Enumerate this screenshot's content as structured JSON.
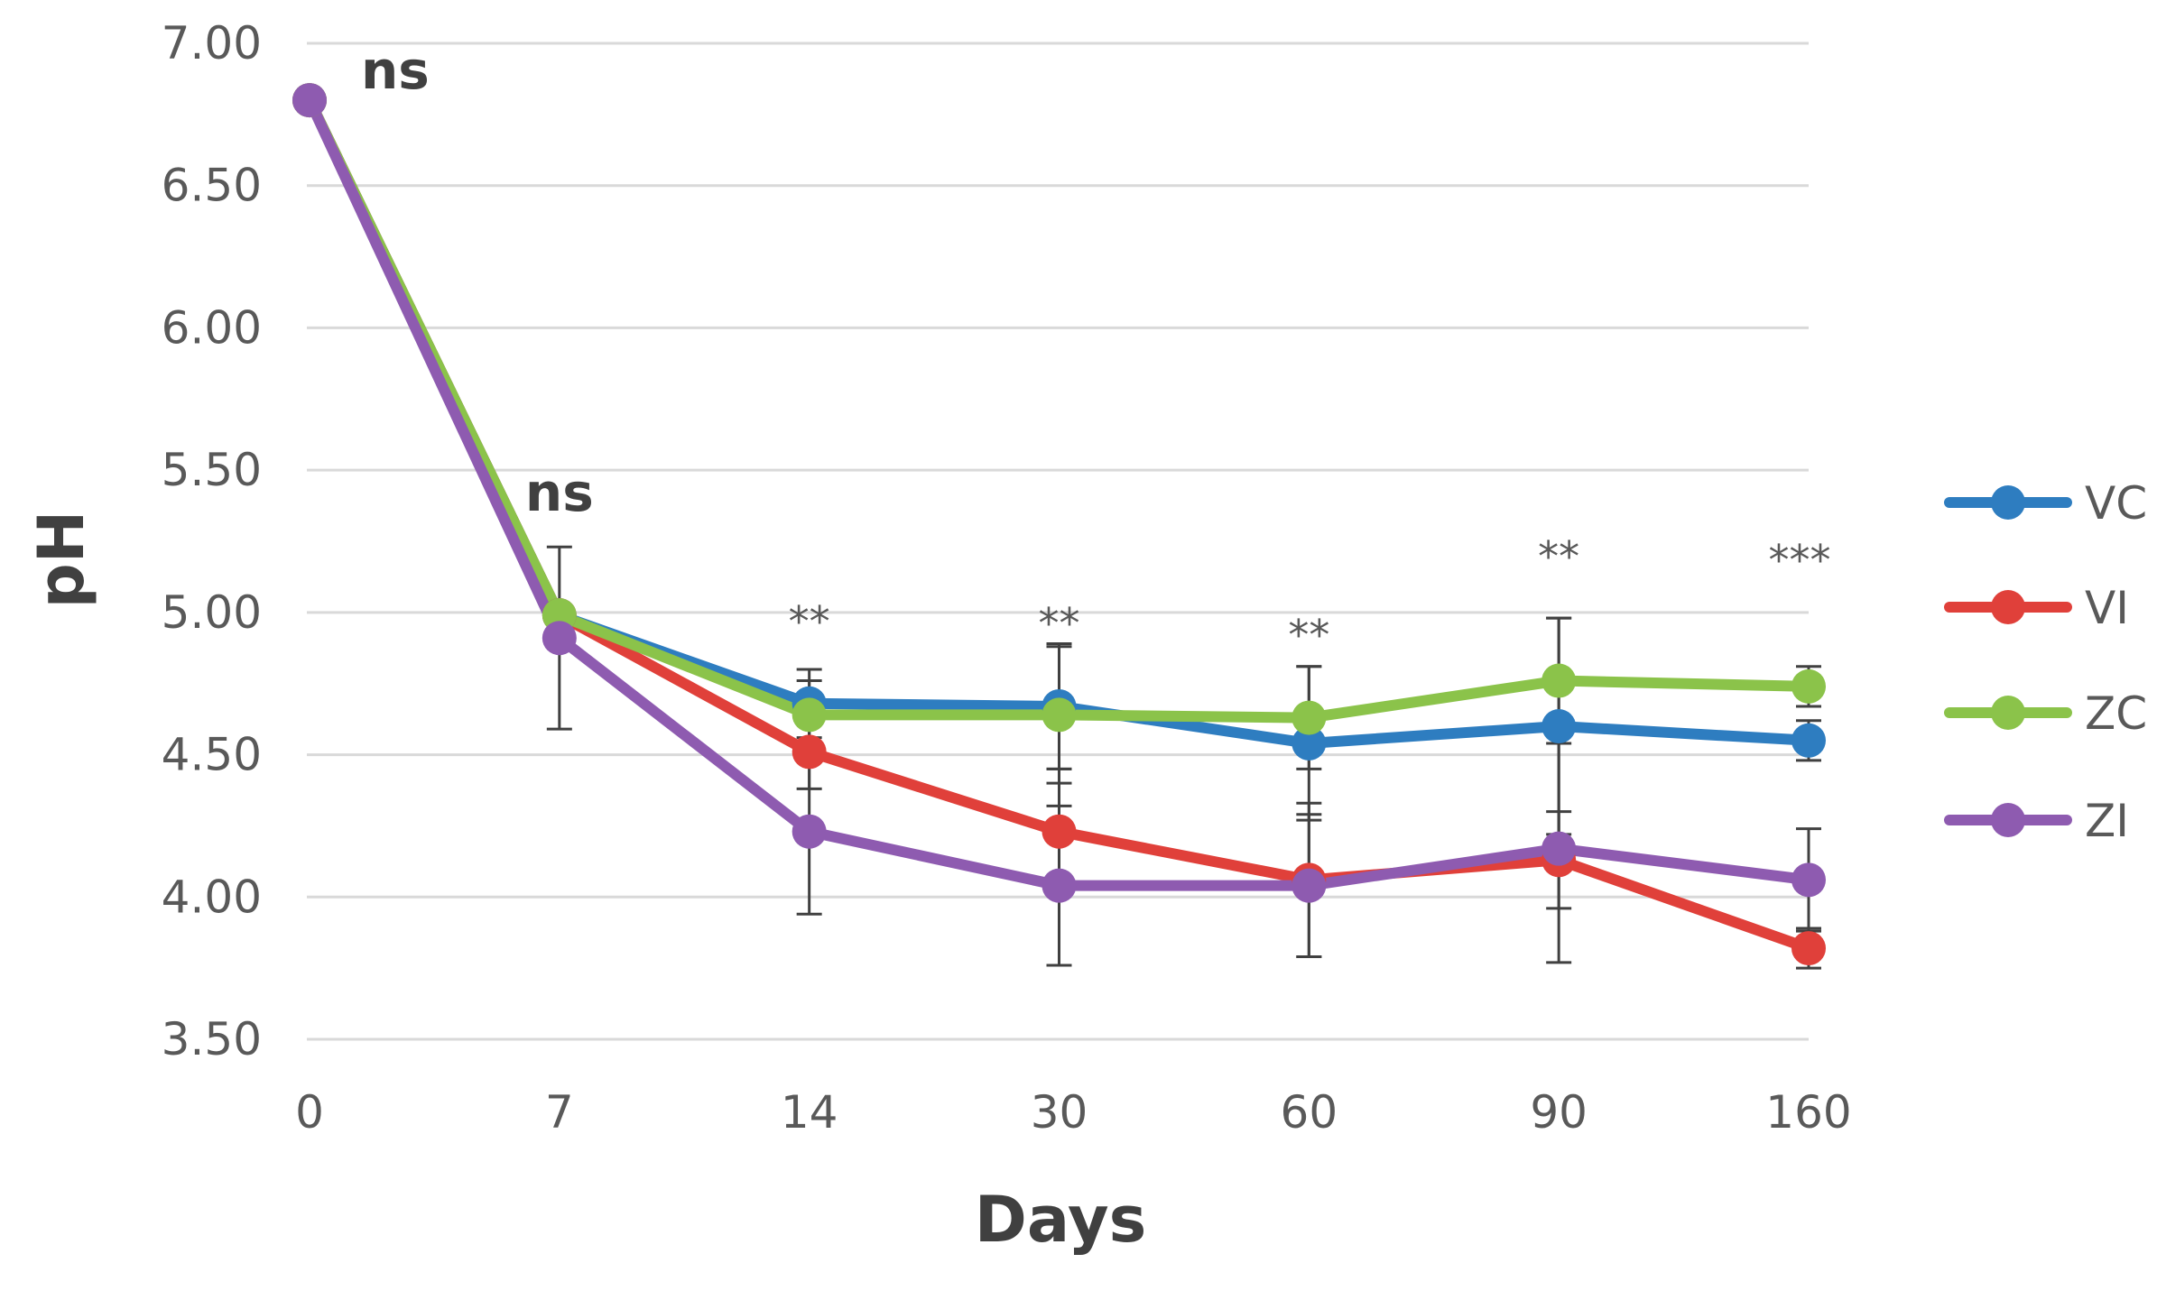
{
  "chart_data": {
    "type": "line",
    "title": "",
    "xlabel": "Days",
    "ylabel": "pH",
    "categories": [
      "0",
      "7",
      "14",
      "30",
      "60",
      "90",
      "160"
    ],
    "ylim": [
      3.5,
      7.0
    ],
    "yticks": [
      "3.50",
      "4.00",
      "4.50",
      "5.00",
      "5.50",
      "6.00",
      "6.50",
      "7.00"
    ],
    "grid": true,
    "legend_position": "right",
    "series": [
      {
        "name": "VC",
        "color": "#2E7DC0",
        "values": [
          6.8,
          4.99,
          4.68,
          4.67,
          4.54,
          4.6,
          4.55
        ],
        "errors": [
          0,
          0,
          0.12,
          0.22,
          0.27,
          0.38,
          0.07
        ]
      },
      {
        "name": "VI",
        "color": "#E0403A",
        "values": [
          6.8,
          4.99,
          4.51,
          4.23,
          4.06,
          4.13,
          3.82
        ],
        "errors": [
          0,
          0,
          0.13,
          0.22,
          0.27,
          0.17,
          0.07
        ]
      },
      {
        "name": "ZC",
        "color": "#8BC34A",
        "values": [
          6.8,
          4.99,
          4.64,
          4.64,
          4.63,
          4.76,
          4.74
        ],
        "errors": [
          0,
          0,
          0.12,
          0.24,
          0.18,
          0.22,
          0.07
        ]
      },
      {
        "name": "ZI",
        "color": "#8E5BB0",
        "values": [
          6.8,
          4.91,
          4.23,
          4.04,
          4.04,
          4.17,
          4.06
        ],
        "errors": [
          0,
          0.32,
          0.29,
          0.28,
          0.25,
          0.4,
          0.18
        ]
      }
    ],
    "annotations": [
      {
        "category": "0",
        "text": "ns",
        "style": "bold"
      },
      {
        "category": "7",
        "text": "ns",
        "style": "bold"
      },
      {
        "category": "14",
        "text": "**",
        "style": "star"
      },
      {
        "category": "30",
        "text": "**",
        "style": "star"
      },
      {
        "category": "60",
        "text": "**",
        "style": "star"
      },
      {
        "category": "90",
        "text": "**",
        "style": "star"
      },
      {
        "category": "160",
        "text": "***",
        "style": "star"
      }
    ]
  }
}
